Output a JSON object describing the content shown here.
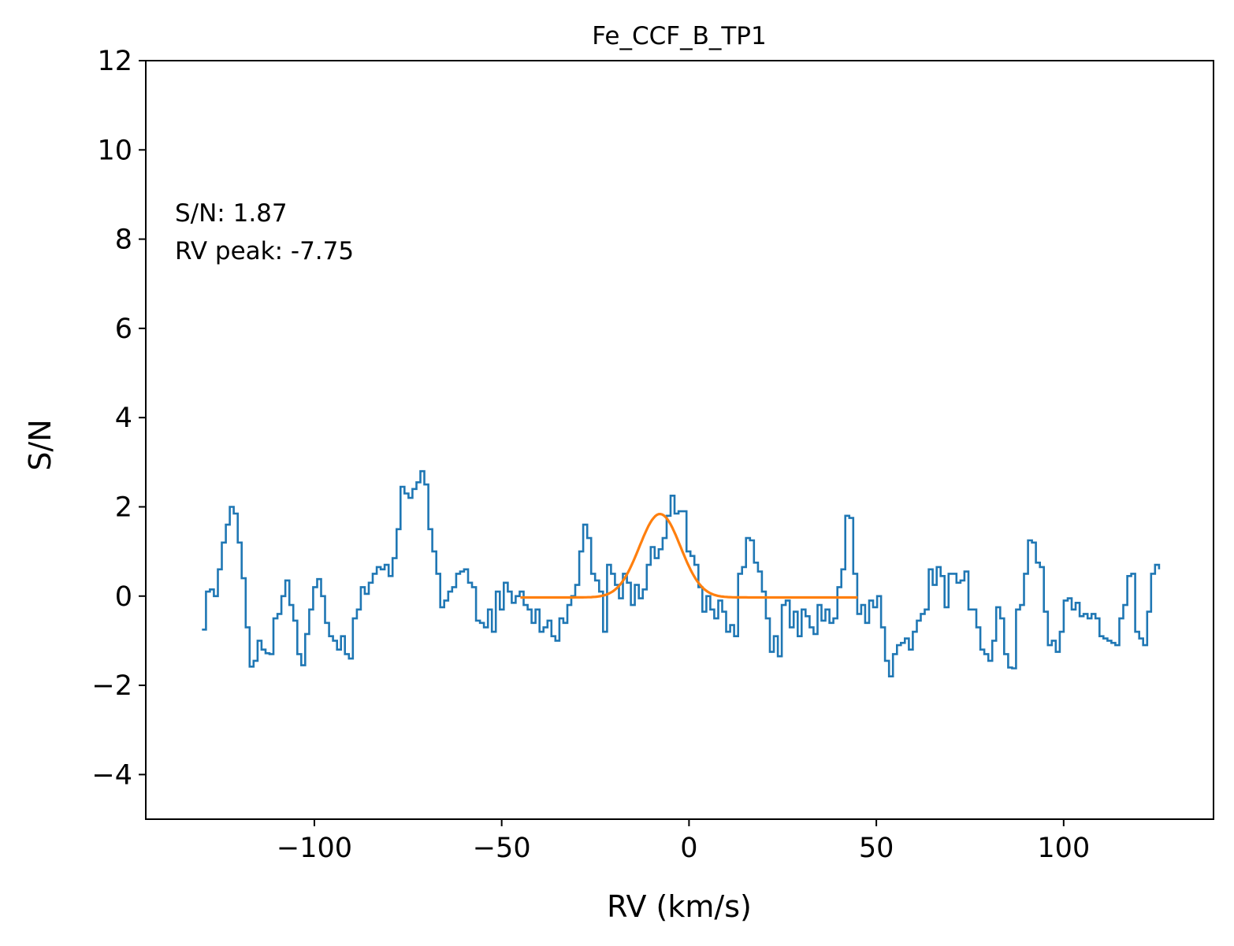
{
  "chart_data": {
    "type": "line",
    "title": "Fe_CCF_B_TP1",
    "xlabel": "RV (km/s)",
    "ylabel": "S/N",
    "xlim": [
      -145,
      140
    ],
    "ylim": [
      -5,
      12
    ],
    "xticks": [
      -100,
      -50,
      0,
      50,
      100
    ],
    "xtick_labels": [
      "−100",
      "−50",
      "0",
      "50",
      "100"
    ],
    "yticks": [
      -4,
      -2,
      0,
      2,
      4,
      6,
      8,
      10,
      12
    ],
    "ytick_labels": [
      "−4",
      "−2",
      "0",
      "2",
      "4",
      "6",
      "8",
      "10",
      "12"
    ],
    "grid": false,
    "annotations": [
      "S/N: 1.87",
      "RV peak: -7.75"
    ],
    "series": [
      {
        "color": "#1f77b4",
        "drawstyle": "steps",
        "x_start": -130,
        "x_step": 1.06,
        "y": [
          -0.75,
          0.1,
          0.15,
          0.0,
          0.6,
          1.2,
          1.6,
          2.0,
          1.85,
          1.2,
          0.4,
          -0.7,
          -1.58,
          -1.45,
          -1.0,
          -1.2,
          -1.28,
          -1.3,
          -0.5,
          -0.4,
          0.0,
          0.35,
          -0.2,
          -0.55,
          -1.3,
          -1.55,
          -0.85,
          -0.3,
          0.2,
          0.38,
          0.0,
          -0.6,
          -0.9,
          -1.0,
          -1.2,
          -0.9,
          -1.3,
          -1.4,
          -0.5,
          -0.3,
          0.2,
          0.05,
          0.3,
          0.5,
          0.65,
          0.6,
          0.7,
          0.45,
          0.85,
          1.5,
          2.45,
          2.3,
          2.2,
          2.4,
          2.55,
          2.8,
          2.5,
          1.5,
          1.0,
          0.5,
          -0.25,
          -0.1,
          0.1,
          0.2,
          0.5,
          0.55,
          0.6,
          0.3,
          0.2,
          -0.55,
          -0.6,
          -0.7,
          -0.3,
          -0.8,
          0.1,
          -0.3,
          0.3,
          0.1,
          -0.15,
          0.0,
          0.1,
          -0.2,
          -0.3,
          -0.6,
          -0.3,
          -0.8,
          -0.7,
          -0.55,
          -0.9,
          -1.0,
          -0.5,
          -0.6,
          -0.2,
          0.0,
          0.25,
          1.0,
          1.6,
          1.3,
          0.5,
          0.35,
          0.1,
          -0.8,
          0.7,
          0.5,
          0.25,
          -0.05,
          0.5,
          0.3,
          -0.2,
          0.25,
          -0.05,
          0.15,
          0.7,
          1.1,
          0.85,
          1.05,
          1.3,
          1.8,
          2.25,
          1.85,
          1.9,
          1.9,
          1.0,
          0.9,
          0.7,
          0.2,
          -0.35,
          0.0,
          -0.3,
          -0.5,
          -0.1,
          -0.35,
          -0.8,
          -0.65,
          -0.9,
          0.5,
          0.65,
          1.3,
          1.25,
          0.75,
          0.55,
          0.1,
          -0.5,
          -1.25,
          -0.9,
          -1.35,
          -0.2,
          -0.1,
          -0.7,
          -0.35,
          -0.9,
          -0.3,
          -0.45,
          -0.7,
          -0.85,
          -0.2,
          -0.55,
          -0.3,
          -0.6,
          -0.5,
          0.2,
          0.6,
          1.8,
          1.75,
          0.5,
          -0.4,
          -0.2,
          -0.6,
          -0.1,
          -0.25,
          0.0,
          -0.7,
          -1.45,
          -1.8,
          -1.3,
          -1.1,
          -1.05,
          -0.95,
          -1.2,
          -0.8,
          -0.55,
          -0.4,
          -0.3,
          0.6,
          0.25,
          0.65,
          0.45,
          -0.25,
          0.5,
          0.5,
          0.3,
          0.35,
          0.55,
          -0.3,
          -0.3,
          -0.7,
          -1.2,
          -1.3,
          -1.45,
          -1.0,
          -0.25,
          -0.5,
          -1.3,
          -1.6,
          -1.62,
          -0.3,
          -0.2,
          0.5,
          1.25,
          1.2,
          0.75,
          0.65,
          -0.35,
          -1.1,
          -1.0,
          -1.25,
          -0.8,
          -0.1,
          -0.05,
          -0.3,
          -0.15,
          -0.45,
          -0.4,
          -0.5,
          -0.4,
          -0.5,
          -0.9,
          -0.95,
          -1.0,
          -1.05,
          -1.1,
          -0.5,
          -0.2,
          0.45,
          0.5,
          -0.8,
          -0.95,
          -1.1,
          -0.35,
          0.5,
          0.7,
          0.6
        ]
      },
      {
        "color": "#ff7f0e",
        "drawstyle": "line",
        "fit": "gaussian",
        "x_range": [
          -45,
          45
        ],
        "amplitude": 1.87,
        "center": -7.75,
        "sigma": 5.5,
        "offset": -0.03
      }
    ]
  }
}
